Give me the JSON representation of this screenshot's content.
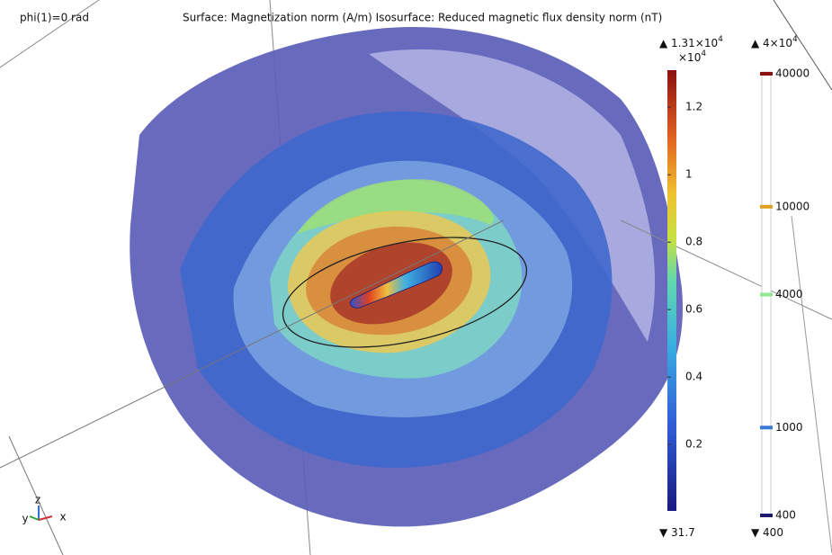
{
  "header": {
    "left": "phi(1)=0 rad",
    "center": "Surface: Magnetization norm (A/m)  Isosurface: Reduced magnetic flux density norm (nT)"
  },
  "colorbar_surface": {
    "max_marker": "▲",
    "max": 13100,
    "max_label": {
      "base": "1.31×10",
      "exponent": "4"
    },
    "multiplier": {
      "base": "×10",
      "exponent": "4"
    },
    "ticks": [
      {
        "value": 12000,
        "label": "1.2"
      },
      {
        "value": 10000,
        "label": "1"
      },
      {
        "value": 8000,
        "label": "0.8"
      },
      {
        "value": 6000,
        "label": "0.6"
      },
      {
        "value": 4000,
        "label": "0.4"
      },
      {
        "value": 2000,
        "label": "0.2"
      }
    ],
    "min_marker": "▼",
    "min": 31.7
  },
  "colorbar_isosurface": {
    "max_marker": "▲",
    "max": 40000,
    "max_label": {
      "base": "4×10",
      "exponent": "4"
    },
    "log_scale": true,
    "ticks": [
      40000,
      10000,
      4000,
      1000,
      400
    ],
    "tick_colors": [
      "#8b1010",
      "#e0a020",
      "#90e890",
      "#3a78d8",
      "#1a1a70"
    ],
    "min_marker": "▼",
    "min": 400
  },
  "axes_triad": {
    "y": "y",
    "z": "z",
    "x": "x"
  }
}
